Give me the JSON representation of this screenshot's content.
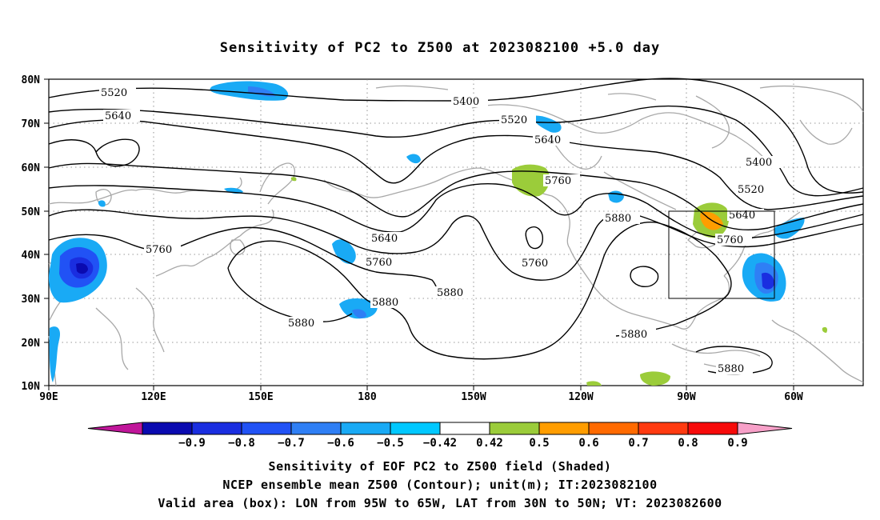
{
  "title": "Sensitivity of PC2 to Z500 at 2023082100 +5.0 day",
  "lat_labels": [
    "80N",
    "70N",
    "60N",
    "50N",
    "40N",
    "30N",
    "20N",
    "10N"
  ],
  "lon_labels": [
    "90E",
    "120E",
    "150E",
    "180",
    "150W",
    "120W",
    "90W",
    "60W"
  ],
  "contour_labels": [
    "5400",
    "5520",
    "5640",
    "5760",
    "5880"
  ],
  "colorbar": {
    "labels": [
      "-0.9",
      "-0.8",
      "-0.7",
      "-0.6",
      "-0.5",
      "-0.42",
      "0.42",
      "0.5",
      "0.6",
      "0.7",
      "0.8",
      "0.9"
    ],
    "colors": [
      "#c0169a",
      "#0a0ab0",
      "#1a2ee0",
      "#2152f5",
      "#2f7ff5",
      "#19aaf5",
      "#00c8ff",
      "#ffffff",
      "#9bcc3a",
      "#ff9d00",
      "#ff6a00",
      "#ff3a10",
      "#f70a0a",
      "#f7a0c8"
    ]
  },
  "captions": {
    "line1": "Sensitivity of EOF PC2 to Z500 field (Shaded)",
    "line2": "NCEP ensemble mean Z500 (Contour); unit(m); IT:2023082100",
    "line3": "Valid area (box): LON from 95W to 65W, LAT from 30N to 50N; VT: 2023082600"
  }
}
